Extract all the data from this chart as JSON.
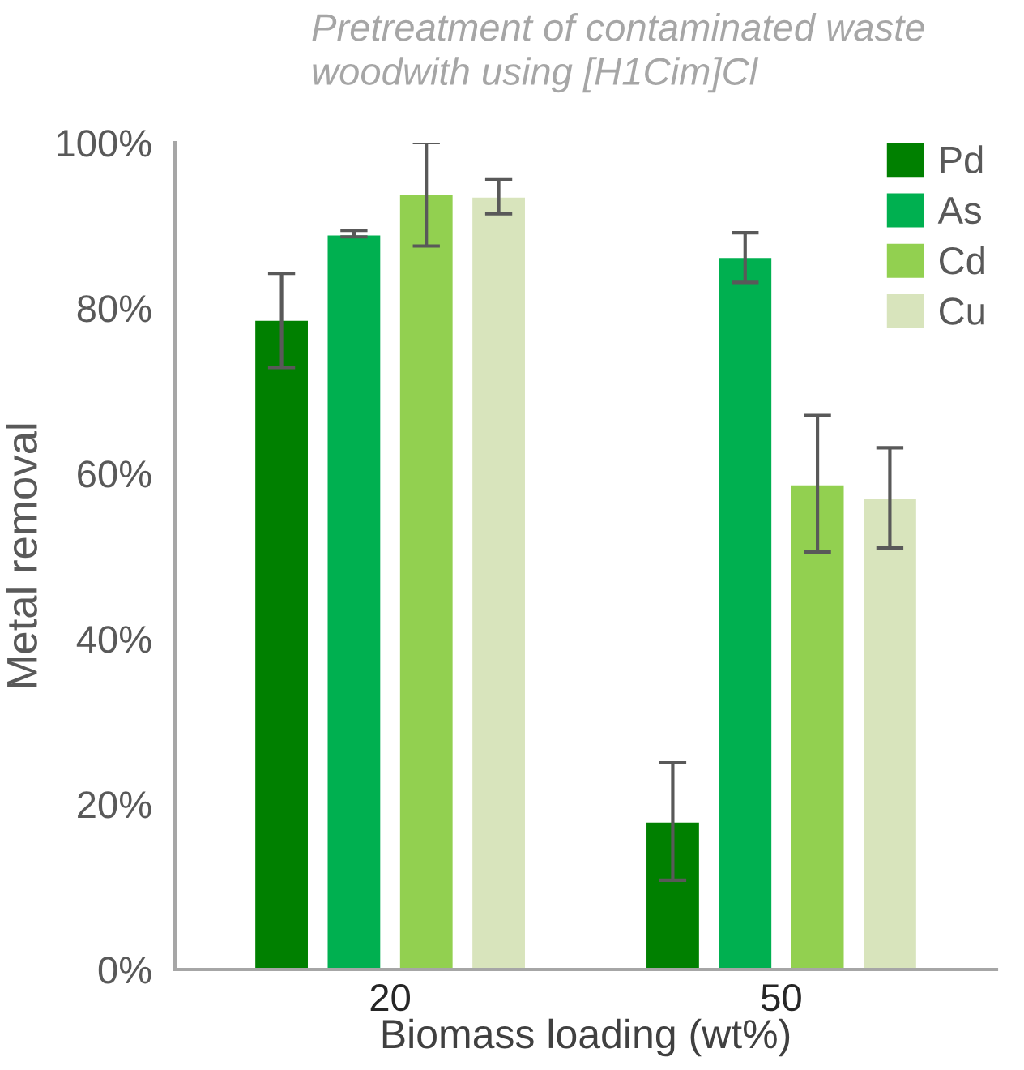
{
  "chart_data": {
    "type": "bar",
    "title": "Pretreatment of contaminated waste\nwoodwith using [H1Cim]Cl",
    "xlabel": "Biomass loading (wt%)",
    "ylabel": "Metal removal",
    "categories": [
      "20",
      "50"
    ],
    "series": [
      {
        "name": "Pd",
        "color": "#008000",
        "values": [
          78.6,
          17.9
        ],
        "errors": [
          [
            72.8,
            84.2
          ],
          [
            10.8,
            25.0
          ]
        ]
      },
      {
        "name": "As",
        "color": "#00b050",
        "values": [
          88.9,
          86.2
        ],
        "errors": [
          [
            88.6,
            89.4
          ],
          [
            83.1,
            89.1
          ]
        ]
      },
      {
        "name": "Cd",
        "color": "#92d050",
        "values": [
          93.8,
          58.7
        ],
        "errors": [
          [
            87.5,
            100
          ],
          [
            50.5,
            67.0
          ]
        ]
      },
      {
        "name": "Cu",
        "color": "#d8e4bc",
        "values": [
          93.5,
          57.0
        ],
        "errors": [
          [
            91.4,
            95.6
          ],
          [
            51.0,
            63.1
          ]
        ]
      }
    ],
    "ylim": [
      0,
      100
    ],
    "yticks": [
      {
        "value": 0,
        "label": "0%"
      },
      {
        "value": 20,
        "label": "20%"
      },
      {
        "value": 40,
        "label": "40%"
      },
      {
        "value": 60,
        "label": "60%"
      },
      {
        "value": 80,
        "label": "80%"
      },
      {
        "value": 100,
        "label": "100%"
      }
    ],
    "grid": false,
    "legend": "top right"
  }
}
